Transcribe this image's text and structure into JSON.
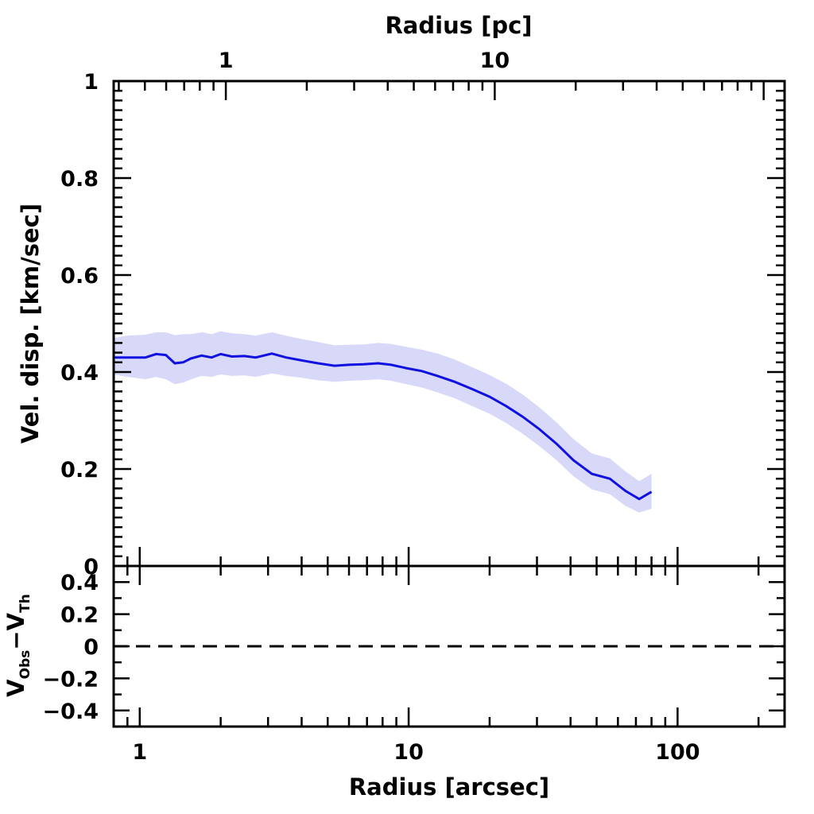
{
  "chart_data": [
    {
      "type": "line",
      "panel": "top",
      "xlabel": "Radius [arcsec]",
      "top_xlabel": "Radius [pc]",
      "ylabel": "Vel. disp. [km/sec]",
      "xscale": "log",
      "xlim": [
        0.8,
        250
      ],
      "ylim": [
        0,
        1
      ],
      "x_ticks": [
        "1",
        "10",
        "100"
      ],
      "top_x_ticks": [
        "1",
        "10"
      ],
      "top_x_tick_arcsec": [
        2.09,
        20.9
      ],
      "y_ticks": [
        "0",
        "0.2",
        "0.4",
        "0.6",
        "0.8",
        "1"
      ],
      "series": [
        {
          "color": "#1010e0",
          "band_color": "#d8d8f8",
          "x": [
            0.8,
            0.9,
            1.05,
            1.15,
            1.25,
            1.35,
            1.45,
            1.55,
            1.7,
            1.85,
            2.0,
            2.2,
            2.45,
            2.7,
            3.1,
            3.5,
            4.0,
            4.6,
            5.3,
            6.0,
            6.8,
            7.7,
            8.6,
            9.8,
            11.2,
            12.8,
            14.8,
            17.2,
            20.0,
            23.0,
            26.5,
            30.5,
            35.5,
            41.0,
            48.0,
            56.0,
            64.0,
            72.0,
            80.0
          ],
          "values": [
            0.43,
            0.43,
            0.43,
            0.437,
            0.435,
            0.418,
            0.42,
            0.428,
            0.434,
            0.43,
            0.437,
            0.432,
            0.433,
            0.43,
            0.438,
            0.43,
            0.424,
            0.418,
            0.413,
            0.415,
            0.416,
            0.418,
            0.415,
            0.408,
            0.402,
            0.392,
            0.38,
            0.365,
            0.349,
            0.33,
            0.308,
            0.283,
            0.252,
            0.218,
            0.19,
            0.18,
            0.155,
            0.138,
            0.153
          ],
          "lower": [
            0.395,
            0.39,
            0.385,
            0.39,
            0.385,
            0.375,
            0.378,
            0.385,
            0.392,
            0.39,
            0.395,
            0.392,
            0.393,
            0.39,
            0.397,
            0.392,
            0.388,
            0.383,
            0.38,
            0.382,
            0.383,
            0.385,
            0.382,
            0.375,
            0.368,
            0.358,
            0.346,
            0.33,
            0.314,
            0.295,
            0.273,
            0.248,
            0.218,
            0.185,
            0.158,
            0.148,
            0.124,
            0.11,
            0.118
          ],
          "upper": [
            0.47,
            0.475,
            0.477,
            0.482,
            0.482,
            0.476,
            0.478,
            0.478,
            0.482,
            0.478,
            0.484,
            0.48,
            0.478,
            0.475,
            0.482,
            0.475,
            0.468,
            0.462,
            0.455,
            0.456,
            0.457,
            0.46,
            0.458,
            0.452,
            0.446,
            0.438,
            0.426,
            0.41,
            0.394,
            0.376,
            0.354,
            0.328,
            0.296,
            0.262,
            0.232,
            0.222,
            0.195,
            0.175,
            0.19
          ]
        }
      ]
    },
    {
      "type": "line",
      "panel": "bottom",
      "ylabel_main": "V",
      "ylabel_sub1": "Obs",
      "ylabel_mid": "−V",
      "ylabel_sub2": "Th",
      "xlim": [
        0.8,
        250
      ],
      "ylim": [
        -0.5,
        0.5
      ],
      "y_ticks": [
        "0.4",
        "0.2",
        "0",
        "−0.2",
        "−0.4"
      ],
      "reference_line": {
        "y": 0,
        "style": "dashed"
      }
    }
  ]
}
